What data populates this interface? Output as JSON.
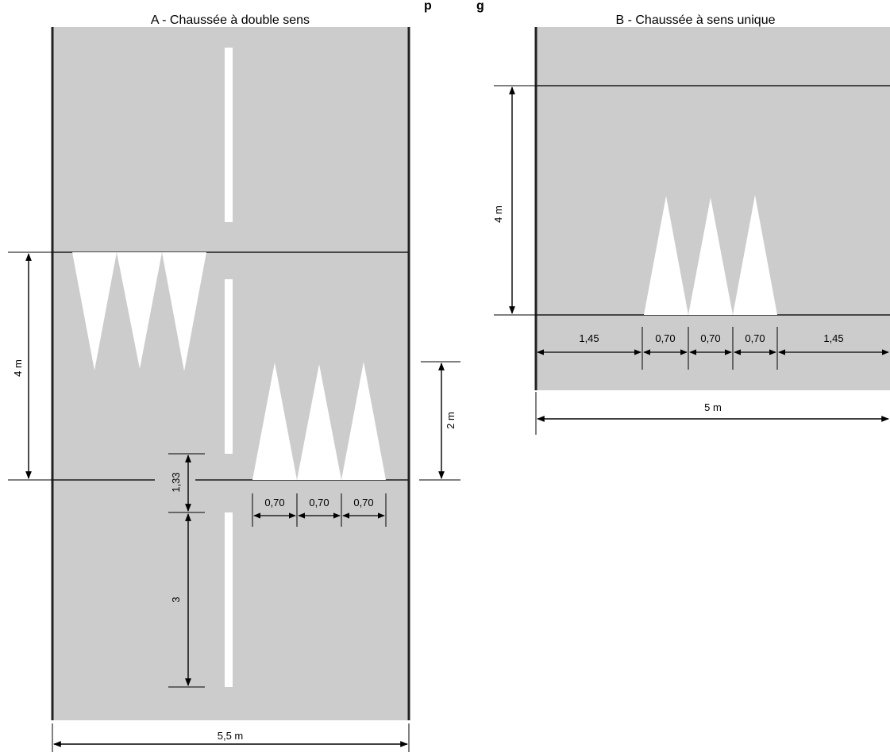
{
  "title_fragment": "p",
  "title_fragment_right": "g",
  "panel_a": {
    "title": "A - Chaussée à double sens",
    "labels": {
      "height": "4 m",
      "half_height": "2 m",
      "gap": "1,33",
      "dash": "3",
      "widths": [
        "0,70",
        "0,70",
        "0,70"
      ],
      "total_width": "5,5 m"
    }
  },
  "panel_b": {
    "title": "B - Chaussée à sens unique",
    "labels": {
      "height": "4 m",
      "widths": [
        "1,45",
        "0,70",
        "0,70",
        "0,70",
        "1,45"
      ],
      "total_width": "5 m"
    }
  },
  "colors": {
    "road": "#cccccc",
    "marking": "#ffffff",
    "line": "#1a1a1a",
    "edge": "#222222"
  }
}
